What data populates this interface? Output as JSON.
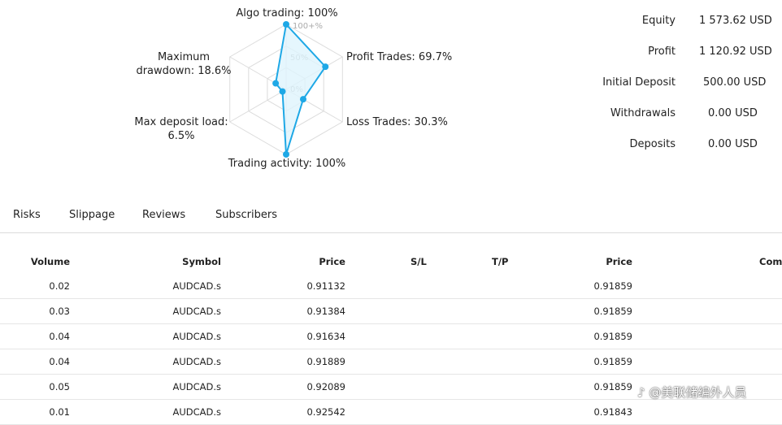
{
  "radar": {
    "labels": [
      {
        "lines": [
          "Algo trading: 100%"
        ]
      },
      {
        "lines": [
          "Profit Trades: 69.7%"
        ]
      },
      {
        "lines": [
          "Loss Trades: 30.3%"
        ]
      },
      {
        "lines": [
          "Trading activity: 100%"
        ]
      },
      {
        "lines": [
          "Max deposit load:",
          "6.5%"
        ]
      },
      {
        "lines": [
          "Maximum",
          "drawdown: 18.6%"
        ]
      }
    ],
    "values": [
      1.0,
      0.697,
      0.303,
      1.0,
      0.065,
      0.186
    ],
    "scale_labels": [
      "100+%",
      "50%",
      "0%"
    ],
    "accent_color": "#1ea8e6",
    "fill_color": "#dff4fc",
    "grid_color": "#dcdcdc"
  },
  "stats": {
    "rows": [
      {
        "label": "Equity",
        "value": "1 573.62 USD"
      },
      {
        "label": "Profit",
        "value": "1 120.92 USD"
      },
      {
        "label": "Initial Deposit",
        "value": "500.00 USD"
      },
      {
        "label": "Withdrawals",
        "value": "0.00 USD"
      },
      {
        "label": "Deposits",
        "value": "0.00 USD"
      }
    ]
  },
  "tabs": [
    "Risks",
    "Slippage",
    "Reviews",
    "Subscribers"
  ],
  "table": {
    "headers": [
      "Volume",
      "Symbol",
      "Price",
      "S/L",
      "T/P",
      "Price",
      "Comi"
    ],
    "rows": [
      {
        "volume": "0.02",
        "symbol": "AUDCAD.s",
        "price": "0.91132",
        "sl": "",
        "tp": "",
        "close_price": "0.91859"
      },
      {
        "volume": "0.03",
        "symbol": "AUDCAD.s",
        "price": "0.91384",
        "sl": "",
        "tp": "",
        "close_price": "0.91859"
      },
      {
        "volume": "0.04",
        "symbol": "AUDCAD.s",
        "price": "0.91634",
        "sl": "",
        "tp": "",
        "close_price": "0.91859"
      },
      {
        "volume": "0.04",
        "symbol": "AUDCAD.s",
        "price": "0.91889",
        "sl": "",
        "tp": "",
        "close_price": "0.91859"
      },
      {
        "volume": "0.05",
        "symbol": "AUDCAD.s",
        "price": "0.92089",
        "sl": "",
        "tp": "",
        "close_price": "0.91859"
      },
      {
        "volume": "0.01",
        "symbol": "AUDCAD.s",
        "price": "0.92542",
        "sl": "",
        "tp": "",
        "close_price": "0.91843"
      }
    ]
  },
  "watermark": "@美联储编外人员",
  "watermark_icon": "tiktok-logo-icon"
}
